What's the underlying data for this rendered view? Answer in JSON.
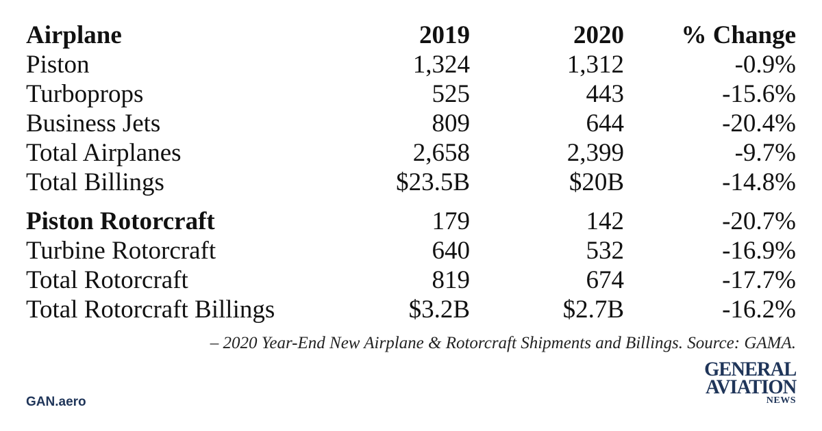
{
  "header": {
    "label": "Airplane",
    "year1": "2019",
    "year2": "2020",
    "change": "% Change"
  },
  "rows": [
    {
      "label": "Piston",
      "y2019": "1,324",
      "y2020": "1,312",
      "change": "-0.9%"
    },
    {
      "label": "Turboprops",
      "y2019": "525",
      "y2020": "443",
      "change": "-15.6%"
    },
    {
      "label": "Business Jets",
      "y2019": "809",
      "y2020": "644",
      "change": "-20.4%"
    },
    {
      "label": "Total Airplanes",
      "y2019": "2,658",
      "y2020": "2,399",
      "change": "-9.7%"
    },
    {
      "label": "Total Billings",
      "y2019": "$23.5B",
      "y2020": "$20B",
      "change": "-14.8%"
    },
    {
      "label": "Piston Rotorcraft",
      "y2019": "179",
      "y2020": "142",
      "change": "-20.7%"
    },
    {
      "label": "Turbine Rotorcraft",
      "y2019": "640",
      "y2020": "532",
      "change": "-16.9%"
    },
    {
      "label": "Total Rotorcraft",
      "y2019": "819",
      "y2020": "674",
      "change": "-17.7%"
    },
    {
      "label": "Total Rotorcraft Billings",
      "y2019": "$3.2B",
      "y2020": "$2.7B",
      "change": "-16.2%"
    }
  ],
  "caption": "– 2020 Year-End New Airplane & Rotorcraft Shipments and Billings. Source: GAMA.",
  "site": "GAN.aero",
  "logo": {
    "line1": "GENERAL",
    "line2": "AVIATION",
    "line3": "NEWS",
    "color": "#1f3559"
  }
}
